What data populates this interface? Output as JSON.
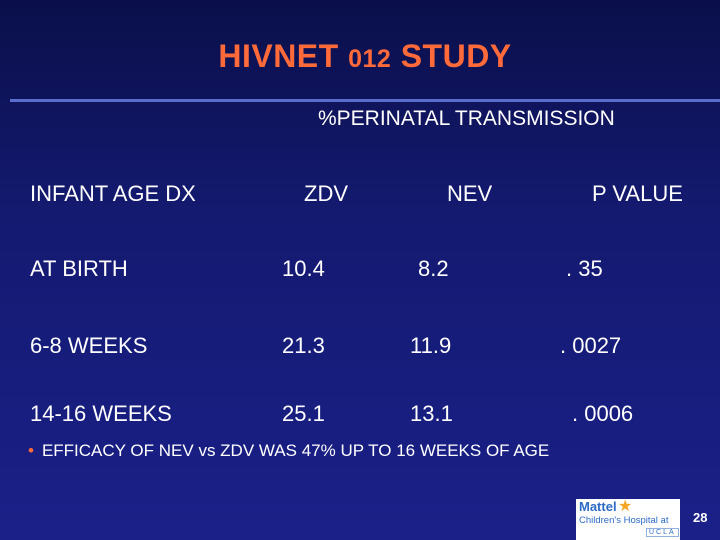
{
  "slide": {
    "title_main": "HIVNET ",
    "title_num": "012",
    "title_end": " STUDY",
    "subtitle": "%PERINATAL TRANSMISSION",
    "columns": [
      "INFANT AGE DX",
      "ZDV",
      "NEV",
      "P VALUE"
    ],
    "rows": [
      [
        "AT BIRTH",
        "10.4",
        "8.2",
        ". 35"
      ],
      [
        "6-8 WEEKS",
        "21.3",
        "11.9",
        ". 0027"
      ],
      [
        "14-16 WEEKS",
        "25.1",
        "13.1",
        ". 0006"
      ]
    ],
    "bullet_symbol": "•",
    "bullet": "EFFICACY OF NEV vs ZDV  WAS 47% UP TO 16 WEEKS OF AGE",
    "logo": {
      "line1": "Mattel",
      "line2": "Children's Hospital at",
      "line3": "UCLA"
    },
    "page_number": "28"
  },
  "colors": {
    "title": "#ff6a3a",
    "background_top": "#0a0f4a",
    "background_bottom": "#1a2088",
    "rule": "#5a6ccc",
    "text": "#ffffff"
  }
}
